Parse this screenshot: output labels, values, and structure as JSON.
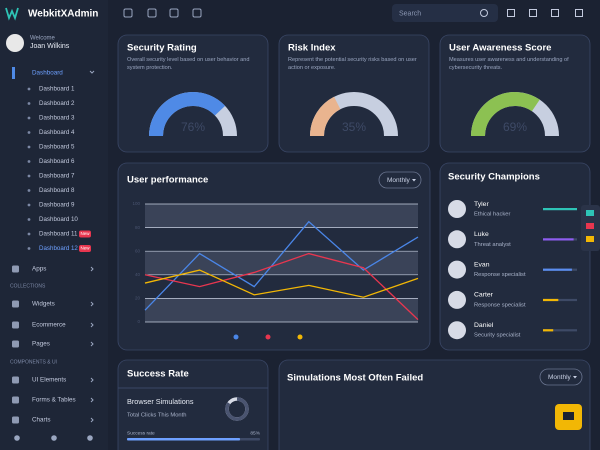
{
  "header": {
    "brand": "WebkitXAdmin",
    "search_placeholder": "Search"
  },
  "sidebar": {
    "welcome": "Welcome",
    "user": "Joan Wilkins",
    "menu": "Dashboard",
    "submenu": [
      {
        "label": "Dashboard 1"
      },
      {
        "label": "Dashboard 2"
      },
      {
        "label": "Dashboard 3"
      },
      {
        "label": "Dashboard 4"
      },
      {
        "label": "Dashboard 5"
      },
      {
        "label": "Dashboard 6"
      },
      {
        "label": "Dashboard 7"
      },
      {
        "label": "Dashboard 8"
      },
      {
        "label": "Dashboard 9"
      },
      {
        "label": "Dashboard 10"
      },
      {
        "label": "Dashboard 11",
        "badge": "New"
      },
      {
        "label": "Dashboard 12",
        "badge": "New"
      }
    ],
    "items": [
      {
        "label": "Apps"
      },
      {
        "heading": "COLLECTIONS"
      },
      {
        "label": "Widgets"
      },
      {
        "label": "Ecommerce"
      },
      {
        "label": "Pages"
      },
      {
        "heading": "COMPONENTS & UI"
      },
      {
        "label": "UI Elements"
      },
      {
        "label": "Forms & Tables"
      },
      {
        "label": "Charts"
      }
    ]
  },
  "ratings": [
    {
      "title": "Security Rating",
      "description": "Overall security level based on user behavior and system protection.",
      "value": 76,
      "value_label": "76%",
      "lim": [
        0,
        100
      ],
      "color": "#4f8ae6"
    },
    {
      "title": "Risk Index",
      "description": "Represent the potential security risks based on user action or exposure.",
      "value": 35,
      "value_label": "35%",
      "lim": [
        0,
        100
      ],
      "color": "#e9b48f"
    },
    {
      "title": "User Awareness Score",
      "description": "Measures user awareness and understanding of cybersecurity threats.",
      "value": 69,
      "value_label": "69%",
      "lim": [
        0,
        100
      ],
      "color": "#8cc152"
    }
  ],
  "performance": {
    "title": "User performance",
    "filter": "Monthly",
    "chart_data": {
      "type": "line",
      "categories": [
        null,
        null,
        null,
        null,
        null,
        null
      ],
      "ylim": [
        0,
        100
      ],
      "yticks": [
        0,
        20,
        40,
        60,
        80,
        100
      ],
      "series": [
        {
          "color": "#4a86e8",
          "values": [
            10,
            58,
            30,
            85,
            44,
            72
          ]
        },
        {
          "color": "#e8364f",
          "values": [
            40,
            30,
            42,
            58,
            46,
            2
          ]
        },
        {
          "color": "#f2b705",
          "values": [
            33,
            44,
            23,
            31,
            21,
            37
          ]
        }
      ]
    }
  },
  "champions": {
    "title": "Security Champions",
    "lim": [
      0,
      100
    ],
    "people": [
      {
        "name": "Tyler",
        "role": "Ethical hacker",
        "value": 100,
        "color": "#2ec4b6"
      },
      {
        "name": "Luke",
        "role": "Threat analyst",
        "value": 90,
        "color": "#8e5cf0"
      },
      {
        "name": "Evan",
        "role": "Response specialist",
        "value": 85,
        "color": "#5b8def"
      },
      {
        "name": "Carter",
        "role": "Response specialist",
        "value": 45,
        "color": "#f2b705"
      },
      {
        "name": "Daniel",
        "role": "Security specialist",
        "value": 30,
        "color": "#f2b705"
      }
    ]
  },
  "success": {
    "title": "Success Rate",
    "subtitle": "Browser Simulations",
    "caption": "Total Clicks This Month",
    "metric": "Success rate",
    "value": 85,
    "value_label": "85%",
    "lim": [
      0,
      100
    ]
  },
  "failed": {
    "title": "Simulations Most Often Failed",
    "filter": "Monthly"
  }
}
